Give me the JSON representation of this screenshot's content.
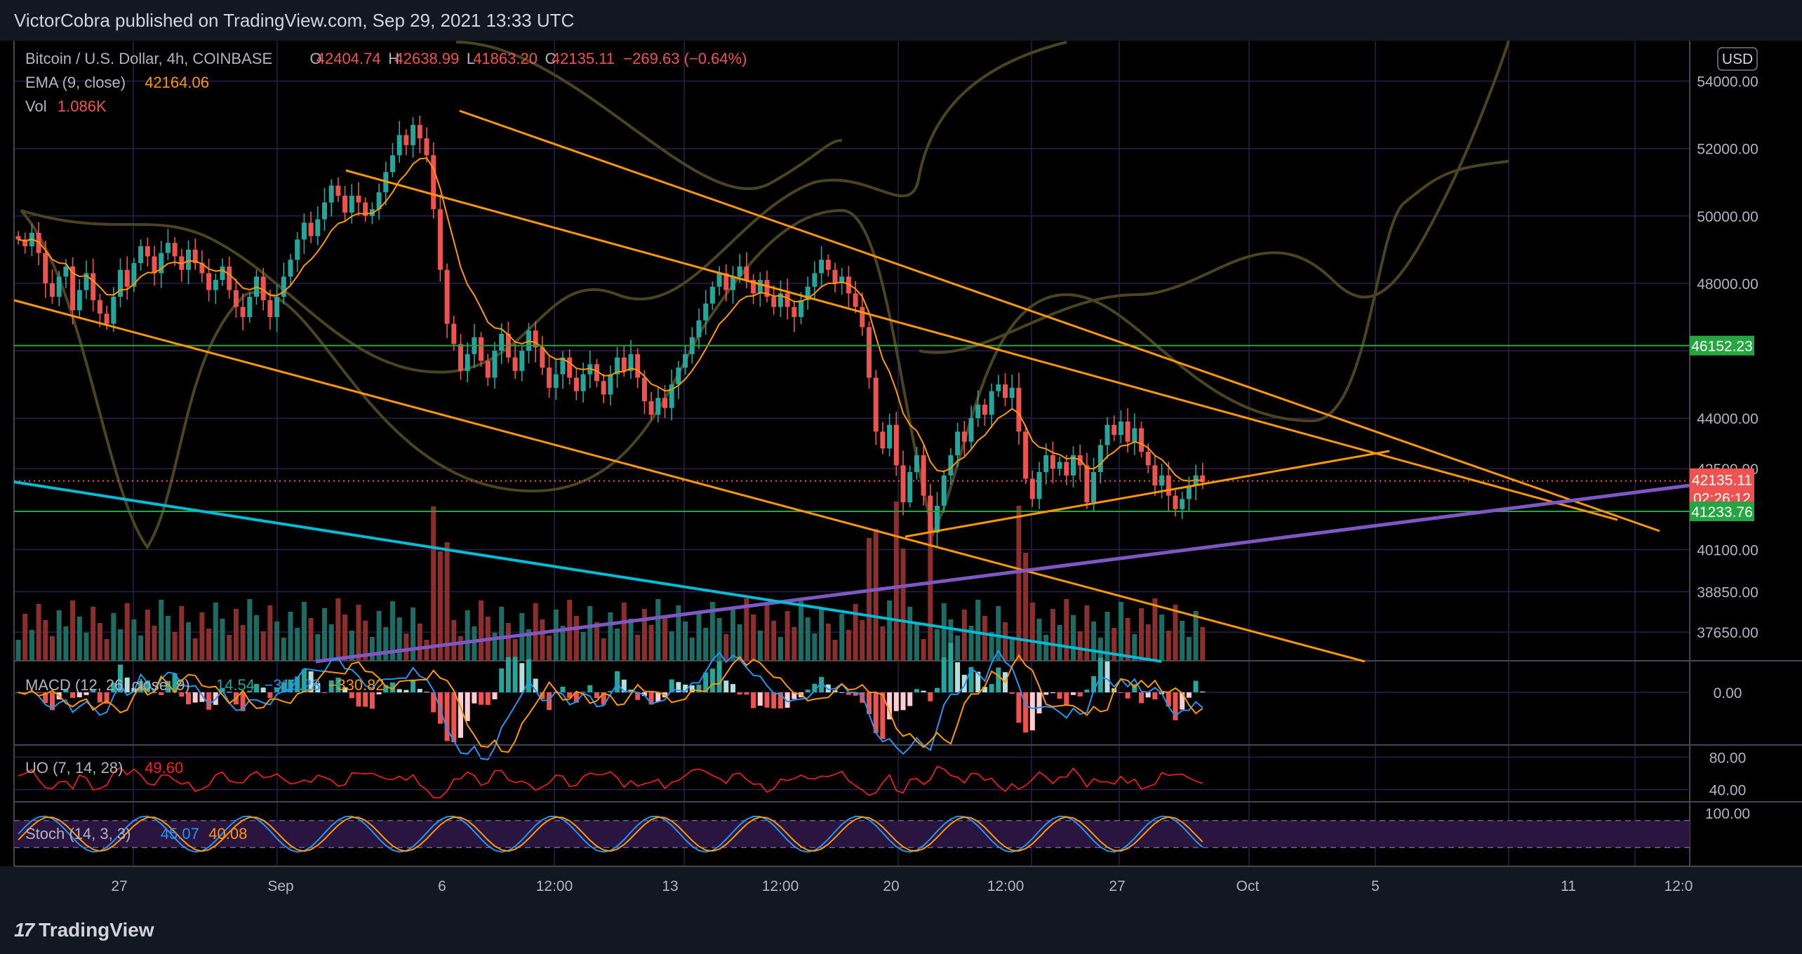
{
  "publisher": "VictorCobra published on TradingView.com, Sep 29, 2021 13:33 UTC",
  "footer_brand": "TradingView",
  "currency_badge": "USD",
  "legend": {
    "symbol": "Bitcoin / U.S. Dollar, 4h, COINBASE",
    "o_label": "O",
    "o": "42404.74",
    "h_label": "H",
    "h": "42638.99",
    "l_label": "L",
    "l": "41863.20",
    "c_label": "C",
    "c": "42135.11",
    "change": "−269.63 (−0.64%)",
    "ema_label": "EMA (9, close)",
    "ema": "42164.06",
    "vol_label": "Vol",
    "vol": "1.086K"
  },
  "macd_legend": {
    "label": "MACD (12, 26, close, 9)",
    "v1": "14.54",
    "v2": "−316.28",
    "v3": "−330.82"
  },
  "uo_legend": {
    "label": "UO (7, 14, 28)",
    "v1": "49.60"
  },
  "stoch_legend": {
    "label": "Stoch (14, 3, 3)",
    "v1": "45.07",
    "v2": "40.08"
  },
  "price_ticks": [
    "54000.00",
    "52000.00",
    "50000.00",
    "48000.00",
    "44000.00",
    "42500.00",
    "40100.00",
    "38850.00",
    "37650.00"
  ],
  "price_tags": [
    {
      "label": "46152.23",
      "value": 46152.23,
      "color": "#26a641"
    },
    {
      "label": "42135.11",
      "value": 42135.11,
      "color": "#ef5350",
      "countdown": "02:26:12"
    },
    {
      "label": "41233.76",
      "value": 41233.76,
      "color": "#26a641"
    }
  ],
  "macd_ticks": [
    "0.00"
  ],
  "uo_ticks": [
    "80.00",
    "40.00"
  ],
  "stoch_ticks": [
    "100.00"
  ],
  "time_ticks": [
    "27",
    "Sep",
    "6",
    "12:00",
    "13",
    "12:00",
    "20",
    "12:00",
    "27",
    "Oct",
    "5",
    "11",
    "12:0"
  ],
  "colors": {
    "bg": "#131722",
    "grid": "#2a1f4d",
    "up": "#26a69a",
    "down": "#ef5350",
    "ema": "#ff9800",
    "channel": "#ff9800",
    "purple": "#7e57c2",
    "cyan": "#00bcd4",
    "support": "#4caf50",
    "bb": "#4a4420",
    "macd": "#2196f3",
    "signal": "#ff9800",
    "uo": "#ff1e1e",
    "stoch_k": "#2196f3",
    "stoch_d": "#ff9800"
  },
  "chart_data": {
    "type": "candlestick",
    "title": "Bitcoin / U.S. Dollar, 4h, COINBASE",
    "ylim": [
      36800,
      55200
    ],
    "horizontal_levels": [
      46152.23,
      41233.76
    ],
    "last_price": 42135.11,
    "close_path": [
      [
        0,
        49300
      ],
      [
        1,
        49100
      ],
      [
        2,
        49500
      ],
      [
        3,
        48900
      ],
      [
        4,
        48000
      ],
      [
        5,
        47600
      ],
      [
        6,
        48200
      ],
      [
        7,
        48500
      ],
      [
        8,
        47200
      ],
      [
        9,
        47800
      ],
      [
        10,
        48300
      ],
      [
        11,
        47500
      ],
      [
        12,
        47100
      ],
      [
        13,
        46800
      ],
      [
        14,
        47600
      ],
      [
        15,
        48400
      ],
      [
        16,
        47900
      ],
      [
        17,
        48600
      ],
      [
        18,
        49100
      ],
      [
        19,
        48800
      ],
      [
        20,
        48300
      ],
      [
        21,
        48900
      ],
      [
        22,
        49200
      ],
      [
        23,
        48800
      ],
      [
        24,
        48400
      ],
      [
        25,
        49000
      ],
      [
        26,
        48600
      ],
      [
        27,
        48300
      ],
      [
        28,
        47800
      ],
      [
        29,
        48100
      ],
      [
        30,
        48500
      ],
      [
        31,
        47800
      ],
      [
        32,
        47300
      ],
      [
        33,
        47000
      ],
      [
        34,
        47600
      ],
      [
        35,
        48200
      ],
      [
        36,
        47500
      ],
      [
        37,
        47000
      ],
      [
        38,
        47600
      ],
      [
        39,
        48200
      ],
      [
        40,
        48700
      ],
      [
        41,
        49300
      ],
      [
        42,
        49800
      ],
      [
        43,
        49400
      ],
      [
        44,
        49900
      ],
      [
        45,
        50400
      ],
      [
        46,
        50900
      ],
      [
        47,
        50600
      ],
      [
        48,
        50100
      ],
      [
        49,
        50600
      ],
      [
        50,
        50400
      ],
      [
        51,
        50000
      ],
      [
        52,
        50200
      ],
      [
        53,
        50700
      ],
      [
        54,
        51300
      ],
      [
        55,
        51800
      ],
      [
        56,
        52400
      ],
      [
        57,
        52100
      ],
      [
        58,
        52700
      ],
      [
        59,
        52300
      ],
      [
        60,
        51800
      ],
      [
        61,
        50200
      ],
      [
        62,
        48400
      ],
      [
        63,
        46800
      ],
      [
        64,
        46200
      ],
      [
        65,
        45400
      ],
      [
        66,
        45900
      ],
      [
        67,
        46400
      ],
      [
        68,
        45700
      ],
      [
        69,
        45200
      ],
      [
        70,
        46000
      ],
      [
        71,
        46500
      ],
      [
        72,
        45800
      ],
      [
        73,
        45400
      ],
      [
        74,
        46000
      ],
      [
        75,
        46600
      ],
      [
        76,
        46100
      ],
      [
        77,
        45500
      ],
      [
        78,
        44900
      ],
      [
        79,
        45300
      ],
      [
        80,
        45800
      ],
      [
        81,
        45200
      ],
      [
        82,
        44800
      ],
      [
        83,
        45300
      ],
      [
        84,
        45600
      ],
      [
        85,
        45100
      ],
      [
        86,
        44700
      ],
      [
        87,
        45300
      ],
      [
        88,
        45800
      ],
      [
        89,
        45400
      ],
      [
        90,
        45900
      ],
      [
        91,
        45200
      ],
      [
        92,
        44500
      ],
      [
        93,
        44100
      ],
      [
        94,
        44600
      ],
      [
        95,
        44300
      ],
      [
        96,
        45000
      ],
      [
        97,
        45500
      ],
      [
        98,
        45900
      ],
      [
        99,
        46400
      ],
      [
        100,
        46900
      ],
      [
        101,
        47400
      ],
      [
        102,
        47900
      ],
      [
        103,
        48300
      ],
      [
        104,
        47800
      ],
      [
        105,
        48200
      ],
      [
        106,
        48500
      ],
      [
        107,
        48100
      ],
      [
        108,
        47700
      ],
      [
        109,
        48100
      ],
      [
        110,
        47600
      ],
      [
        111,
        47300
      ],
      [
        112,
        47700
      ],
      [
        113,
        47300
      ],
      [
        114,
        47000
      ],
      [
        115,
        47500
      ],
      [
        116,
        47900
      ],
      [
        117,
        48300
      ],
      [
        118,
        48700
      ],
      [
        119,
        48400
      ],
      [
        120,
        48000
      ],
      [
        121,
        48200
      ],
      [
        122,
        47700
      ],
      [
        123,
        47300
      ],
      [
        124,
        46700
      ],
      [
        125,
        45200
      ],
      [
        126,
        43600
      ],
      [
        127,
        43100
      ],
      [
        128,
        43800
      ],
      [
        129,
        42600
      ],
      [
        130,
        41500
      ],
      [
        131,
        42400
      ],
      [
        132,
        42900
      ],
      [
        133,
        41700
      ],
      [
        134,
        40600
      ],
      [
        135,
        41400
      ],
      [
        136,
        42300
      ],
      [
        137,
        42900
      ],
      [
        138,
        43600
      ],
      [
        139,
        43300
      ],
      [
        140,
        44000
      ],
      [
        141,
        44400
      ],
      [
        142,
        44100
      ],
      [
        143,
        44800
      ],
      [
        144,
        45000
      ],
      [
        145,
        44600
      ],
      [
        146,
        44900
      ],
      [
        147,
        43600
      ],
      [
        148,
        42200
      ],
      [
        149,
        41600
      ],
      [
        150,
        42400
      ],
      [
        151,
        42900
      ],
      [
        152,
        42500
      ],
      [
        153,
        42700
      ],
      [
        154,
        42300
      ],
      [
        155,
        42900
      ],
      [
        156,
        42600
      ],
      [
        157,
        41500
      ],
      [
        158,
        42400
      ],
      [
        159,
        43200
      ],
      [
        160,
        43800
      ],
      [
        161,
        43500
      ],
      [
        162,
        43900
      ],
      [
        163,
        43300
      ],
      [
        164,
        43700
      ],
      [
        165,
        43000
      ],
      [
        166,
        42600
      ],
      [
        167,
        42000
      ],
      [
        168,
        42300
      ],
      [
        169,
        41700
      ],
      [
        170,
        41300
      ],
      [
        171,
        41600
      ],
      [
        172,
        42000
      ],
      [
        173,
        42300
      ],
      [
        174,
        42100
      ]
    ],
    "macd_range": [
      -2500,
      1500
    ],
    "uo_range": [
      25,
      95
    ],
    "stoch_range": [
      0,
      100
    ]
  }
}
